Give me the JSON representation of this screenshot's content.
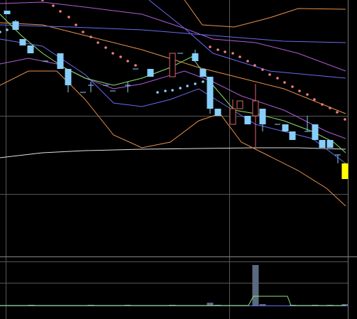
{
  "chart_data": {
    "type": "candlestick",
    "xlim": [
      0,
      503
    ],
    "ylim": [
      0,
      360
    ],
    "up_color": "#e06666",
    "down_color": "#87cefa",
    "last_color": "#ffff00",
    "x": [
      10,
      22,
      32,
      43,
      64,
      85,
      96,
      117,
      128,
      149,
      159,
      180,
      191,
      212,
      243,
      254,
      275,
      286,
      296,
      307,
      328,
      338,
      349,
      360,
      370,
      391,
      402,
      412,
      433,
      444,
      454,
      465,
      476,
      486
    ],
    "open": [
      345,
      330,
      305,
      296,
      274,
      285,
      263,
      230,
      240,
      240,
      232,
      240,
      263,
      263,
      252,
      285,
      285,
      263,
      252,
      207,
      185,
      207,
      197,
      197,
      207,
      185,
      185,
      175,
      175,
      185,
      163,
      163,
      142,
      130
    ],
    "close": [
      340,
      318,
      296,
      285,
      274,
      263,
      240,
      230,
      240,
      240,
      232,
      240,
      263,
      252,
      285,
      285,
      274,
      252,
      207,
      197,
      207,
      218,
      185,
      218,
      185,
      185,
      175,
      163,
      175,
      163,
      152,
      152,
      142,
      108
    ],
    "high": [
      345,
      332,
      305,
      296,
      274,
      285,
      263,
      230,
      245,
      240,
      232,
      245,
      263,
      263,
      285,
      285,
      290,
      263,
      252,
      207,
      220,
      218,
      197,
      242,
      207,
      185,
      185,
      175,
      197,
      185,
      163,
      163,
      142,
      130
    ],
    "low": [
      340,
      318,
      296,
      285,
      274,
      263,
      230,
      230,
      230,
      240,
      232,
      230,
      263,
      252,
      252,
      285,
      274,
      252,
      200,
      197,
      185,
      207,
      185,
      153,
      175,
      185,
      175,
      163,
      175,
      163,
      152,
      152,
      130,
      108
    ],
    "series": [
      {
        "color": "#e0e0e0",
        "x": [
          0,
          60,
          120,
          200,
          280,
          360,
          420,
          487
        ],
        "values": [
          138,
          145,
          148,
          150,
          151,
          152,
          152,
          150
        ]
      },
      {
        "color": "#e8904a",
        "x": [
          0,
          60,
          120,
          200,
          280,
          340,
          400,
          487
        ],
        "values": [
          328,
          325,
          310,
          290,
          265,
          250,
          235,
          200
        ]
      },
      {
        "color": "#e8904a",
        "x": [
          0,
          40,
          80,
          120,
          160,
          200,
          240,
          280,
          310,
          340,
          380,
          420,
          460,
          487
        ],
        "values": [
          240,
          260,
          260,
          220,
          170,
          152,
          160,
          190,
          200,
          160,
          140,
          120,
          95,
          70
        ]
      },
      {
        "color": "#e8904a",
        "x": [
          260,
          285,
          330,
          380,
          420,
          487
        ],
        "values": [
          360,
          325,
          322,
          335,
          348,
          347
        ]
      },
      {
        "color": "#b05cd8",
        "x": [
          0,
          60,
          120,
          200,
          260,
          300,
          360,
          420,
          487
        ],
        "values": [
          355,
          357,
          350,
          340,
          320,
          305,
          300,
          285,
          260
        ]
      },
      {
        "color": "#b05cd8",
        "x": [
          0,
          40,
          80,
          120,
          160,
          200,
          260,
          300,
          340,
          400,
          460,
          487
        ],
        "values": [
          270,
          278,
          270,
          250,
          235,
          242,
          260,
          245,
          225,
          205,
          175,
          165
        ]
      },
      {
        "color": "#6a6af0",
        "x": [
          0,
          100,
          200,
          300,
          400,
          487
        ],
        "values": [
          325,
          322,
          318,
          310,
          302,
          300
        ]
      },
      {
        "color": "#6a6af0",
        "x": [
          0,
          60,
          120,
          160,
          200,
          240,
          280,
          320,
          360,
          400,
          440,
          487
        ],
        "values": [
          305,
          295,
          255,
          215,
          210,
          220,
          235,
          210,
          185,
          175,
          165,
          130
        ]
      },
      {
        "color": "#6a6af0",
        "x": [
          210,
          260,
          300,
          380,
          487
        ],
        "values": [
          360,
          320,
          285,
          260,
          250
        ]
      },
      {
        "color": "#90e070",
        "x": [
          0,
          30,
          60,
          90,
          120,
          160,
          200,
          240,
          270,
          300,
          330,
          360,
          400,
          440,
          470,
          487
        ],
        "values": [
          340,
          310,
          285,
          265,
          250,
          240,
          250,
          265,
          280,
          240,
          205,
          200,
          190,
          175,
          160,
          145
        ]
      }
    ],
    "dots": [
      {
        "color": "#f08080",
        "x": [
          60,
          75,
          85,
          97,
          107,
          117,
          128,
          138,
          149,
          159,
          170,
          180,
          191,
          296,
          307,
          317,
          328,
          338,
          349,
          359,
          370,
          380,
          391,
          401,
          412,
          422,
          433,
          443,
          454,
          465,
          475,
          486
        ],
        "values": [
          360,
          352,
          344,
          336,
          325,
          315,
          308,
          300,
          293,
          285,
          280,
          274,
          268,
          294,
          290,
          287,
          285,
          280,
          274,
          268,
          262,
          255,
          250,
          244,
          238,
          232,
          227,
          220,
          213,
          208,
          202,
          192
        ]
      },
      {
        "color": "#87cefa",
        "x": [
          0,
          10,
          222,
          233,
          243,
          254,
          264,
          275,
          286
        ],
        "values": [
          315,
          318,
          230,
          232,
          233,
          236,
          239,
          242,
          245
        ]
      }
    ],
    "volume": {
      "ylim": [
        0,
        70
      ],
      "color": "#5a6a80",
      "x": [
        44,
        128,
        180,
        243,
        296,
        307,
        360,
        370,
        412,
        444,
        465,
        486
      ],
      "values": [
        1,
        1,
        1,
        1,
        4,
        1,
        57,
        2,
        1,
        1,
        1,
        2
      ],
      "line": {
        "color": "#90e070",
        "x": [
          0,
          350,
          357,
          405,
          410,
          487
        ],
        "values": [
          0,
          0,
          13,
          13,
          0,
          0
        ]
      }
    }
  }
}
